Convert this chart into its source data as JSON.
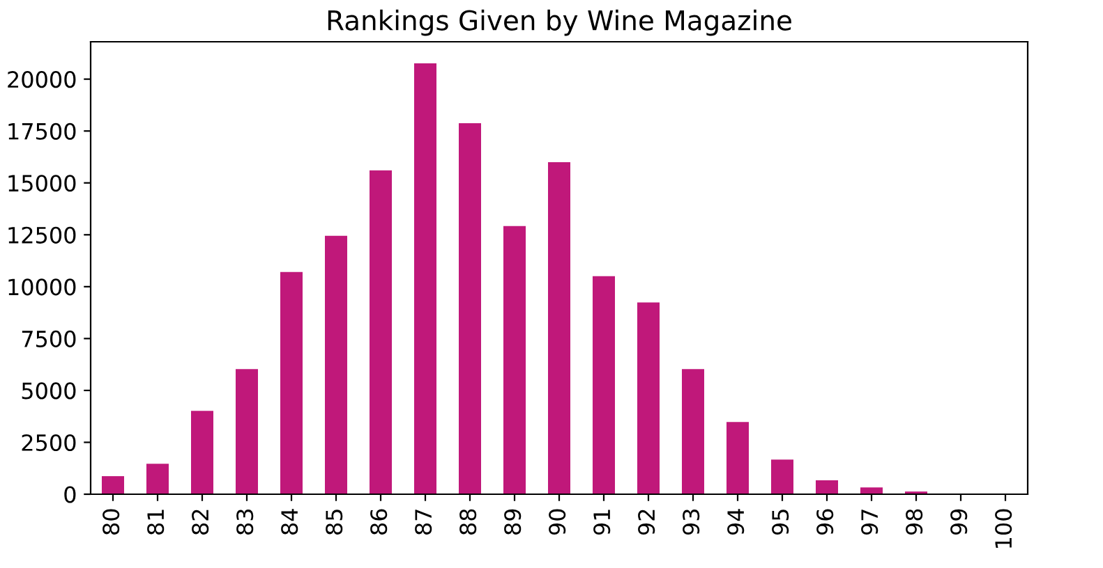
{
  "chart_data": {
    "type": "bar",
    "title": "Rankings Given by Wine Magazine",
    "categories": [
      "80",
      "81",
      "82",
      "83",
      "84",
      "85",
      "86",
      "87",
      "88",
      "89",
      "90",
      "91",
      "92",
      "93",
      "94",
      "95",
      "96",
      "97",
      "98",
      "99",
      "100"
    ],
    "values": [
      870,
      1470,
      4020,
      6030,
      10710,
      12450,
      15600,
      20760,
      17880,
      12920,
      16000,
      10510,
      9240,
      6030,
      3480,
      1670,
      670,
      330,
      130,
      20,
      20
    ],
    "color": "#c0187a",
    "ylim": [
      0,
      21800
    ],
    "yticks": [
      0,
      2500,
      5000,
      7500,
      10000,
      12500,
      15000,
      17500,
      20000
    ],
    "grid": false,
    "legend": false
  }
}
